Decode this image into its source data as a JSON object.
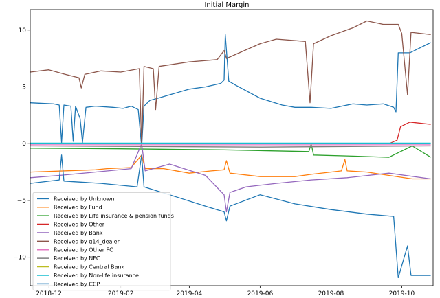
{
  "chart_data": {
    "type": "line",
    "title": "Initial Margin",
    "xlabel": "",
    "ylabel": "",
    "x_ticks": [
      "2018-12",
      "2019-02",
      "2019-04",
      "2019-06",
      "2019-08",
      "2019-10"
    ],
    "y_ticks": [
      10,
      5,
      0,
      -5,
      -10
    ],
    "xlim": [
      "2018-11-15",
      "2019-10-28"
    ],
    "ylim": [
      -12.5,
      11.8
    ],
    "grid": false,
    "legend_position": "lower-left",
    "series": [
      {
        "name": "Received by Unknown",
        "color": "#1f77b4",
        "points": [
          [
            "2018-11-15",
            3.6
          ],
          [
            "2018-12-05",
            3.5
          ],
          [
            "2018-12-10",
            3.4
          ],
          [
            "2018-12-12",
            0.1
          ],
          [
            "2018-12-14",
            3.4
          ],
          [
            "2018-12-20",
            3.3
          ],
          [
            "2018-12-22",
            0.2
          ],
          [
            "2018-12-24",
            3.3
          ],
          [
            "2018-12-28",
            2.2
          ],
          [
            "2018-12-30",
            0.1
          ],
          [
            "2019-01-02",
            3.2
          ],
          [
            "2019-01-10",
            3.3
          ],
          [
            "2019-01-25",
            3.2
          ],
          [
            "2019-02-03",
            3.1
          ],
          [
            "2019-02-10",
            3.3
          ],
          [
            "2019-02-16",
            3.0
          ],
          [
            "2019-02-19",
            -0.3
          ],
          [
            "2019-02-21",
            3.3
          ],
          [
            "2019-02-26",
            3.8
          ],
          [
            "2019-03-05",
            4.0
          ],
          [
            "2019-04-01",
            4.8
          ],
          [
            "2019-04-15",
            5.0
          ],
          [
            "2019-04-28",
            5.3
          ],
          [
            "2019-05-01",
            5.6
          ],
          [
            "2019-05-02",
            9.6
          ],
          [
            "2019-05-05",
            5.5
          ],
          [
            "2019-05-10",
            5.2
          ],
          [
            "2019-06-01",
            4.0
          ],
          [
            "2019-06-20",
            3.4
          ],
          [
            "2019-07-01",
            3.2
          ],
          [
            "2019-07-15",
            3.2
          ],
          [
            "2019-08-01",
            3.1
          ],
          [
            "2019-08-20",
            3.5
          ],
          [
            "2019-09-01",
            3.4
          ],
          [
            "2019-09-15",
            3.5
          ],
          [
            "2019-09-24",
            3.2
          ],
          [
            "2019-09-26",
            2.8
          ],
          [
            "2019-09-28",
            8.0
          ],
          [
            "2019-10-08",
            8.0
          ],
          [
            "2019-10-26",
            8.9
          ]
        ]
      },
      {
        "name": "Received by Fund",
        "color": "#ff7f0e",
        "points": [
          [
            "2018-11-15",
            -2.5
          ],
          [
            "2019-01-10",
            -2.3
          ],
          [
            "2019-01-20",
            -2.2
          ],
          [
            "2019-02-10",
            -2.1
          ],
          [
            "2019-02-19",
            -1.0
          ],
          [
            "2019-02-22",
            -2.2
          ],
          [
            "2019-03-10",
            -2.2
          ],
          [
            "2019-04-01",
            -2.6
          ],
          [
            "2019-04-20",
            -2.4
          ],
          [
            "2019-05-01",
            -2.3
          ],
          [
            "2019-05-03",
            -1.5
          ],
          [
            "2019-05-06",
            -2.6
          ],
          [
            "2019-06-01",
            -2.9
          ],
          [
            "2019-07-01",
            -2.9
          ],
          [
            "2019-07-15",
            -2.7
          ],
          [
            "2019-08-10",
            -2.4
          ],
          [
            "2019-08-13",
            -1.4
          ],
          [
            "2019-08-15",
            -2.4
          ],
          [
            "2019-09-01",
            -2.5
          ],
          [
            "2019-09-20",
            -2.8
          ],
          [
            "2019-10-10",
            -3.1
          ],
          [
            "2019-10-26",
            -3.1
          ]
        ]
      },
      {
        "name": "Received by Life insurance & pension funds",
        "color": "#2ca02c",
        "points": [
          [
            "2018-11-15",
            -0.4
          ],
          [
            "2019-02-01",
            -0.45
          ],
          [
            "2019-05-01",
            -0.55
          ],
          [
            "2019-07-13",
            -0.7
          ],
          [
            "2019-07-15",
            0.0
          ],
          [
            "2019-07-17",
            -1.0
          ],
          [
            "2019-08-20",
            -1.1
          ],
          [
            "2019-09-20",
            -1.2
          ],
          [
            "2019-10-10",
            -0.2
          ],
          [
            "2019-10-26",
            -1.2
          ]
        ]
      },
      {
        "name": "Received by Other",
        "color": "#d62728",
        "points": [
          [
            "2018-11-15",
            0.0
          ],
          [
            "2019-09-20",
            0.0
          ],
          [
            "2019-09-27",
            0.3
          ],
          [
            "2019-09-30",
            1.5
          ],
          [
            "2019-10-08",
            1.9
          ],
          [
            "2019-10-26",
            1.7
          ]
        ]
      },
      {
        "name": "Received by Bank",
        "color": "#9467bd",
        "points": [
          [
            "2018-11-15",
            -3.0
          ],
          [
            "2018-12-10",
            -2.8
          ],
          [
            "2019-01-10",
            -2.5
          ],
          [
            "2019-02-10",
            -2.2
          ],
          [
            "2019-02-19",
            0.0
          ],
          [
            "2019-02-22",
            -2.4
          ],
          [
            "2019-03-15",
            -1.8
          ],
          [
            "2019-04-15",
            -2.8
          ],
          [
            "2019-05-01",
            -4.5
          ],
          [
            "2019-05-03",
            -6.0
          ],
          [
            "2019-05-06",
            -4.3
          ],
          [
            "2019-05-20",
            -3.8
          ],
          [
            "2019-06-15",
            -3.5
          ],
          [
            "2019-07-15",
            -3.2
          ],
          [
            "2019-08-15",
            -3.0
          ],
          [
            "2019-09-20",
            -2.6
          ],
          [
            "2019-10-26",
            -3.1
          ]
        ]
      },
      {
        "name": "Received by g14_dealer",
        "color": "#8c564b",
        "points": [
          [
            "2018-11-15",
            6.3
          ],
          [
            "2018-12-01",
            6.5
          ],
          [
            "2018-12-15",
            6.1
          ],
          [
            "2018-12-27",
            5.8
          ],
          [
            "2018-12-29",
            4.9
          ],
          [
            "2019-01-01",
            6.1
          ],
          [
            "2019-01-15",
            6.4
          ],
          [
            "2019-02-01",
            6.3
          ],
          [
            "2019-02-17",
            6.6
          ],
          [
            "2019-02-19",
            -0.3
          ],
          [
            "2019-02-21",
            6.8
          ],
          [
            "2019-03-01",
            6.6
          ],
          [
            "2019-03-03",
            3.0
          ],
          [
            "2019-03-06",
            6.8
          ],
          [
            "2019-04-01",
            7.2
          ],
          [
            "2019-04-25",
            7.4
          ],
          [
            "2019-05-01",
            8.2
          ],
          [
            "2019-05-03",
            7.5
          ],
          [
            "2019-06-01",
            8.8
          ],
          [
            "2019-06-15",
            9.2
          ],
          [
            "2019-07-10",
            9.0
          ],
          [
            "2019-07-14",
            3.6
          ],
          [
            "2019-07-17",
            8.8
          ],
          [
            "2019-08-01",
            9.5
          ],
          [
            "2019-08-20",
            10.2
          ],
          [
            "2019-09-01",
            10.8
          ],
          [
            "2019-09-15",
            10.5
          ],
          [
            "2019-09-28",
            10.5
          ],
          [
            "2019-10-01",
            9.7
          ],
          [
            "2019-10-06",
            4.3
          ],
          [
            "2019-10-09",
            9.8
          ],
          [
            "2019-10-26",
            9.6
          ]
        ]
      },
      {
        "name": "Received by Other FC",
        "color": "#e377c2",
        "points": [
          [
            "2018-11-15",
            -0.1
          ],
          [
            "2019-10-26",
            -0.1
          ]
        ]
      },
      {
        "name": "Received by NFC",
        "color": "#7f7f7f",
        "points": [
          [
            "2018-11-15",
            -0.2
          ],
          [
            "2019-06-01",
            -0.3
          ],
          [
            "2019-10-26",
            -0.2
          ]
        ]
      },
      {
        "name": "Received by Central Bank",
        "color": "#bcbd22",
        "points": [
          [
            "2018-11-15",
            0.02
          ],
          [
            "2019-10-26",
            0.02
          ]
        ]
      },
      {
        "name": "Received by Non-life insurance",
        "color": "#17becf",
        "points": [
          [
            "2018-11-15",
            0.05
          ],
          [
            "2019-10-26",
            0.05
          ]
        ]
      },
      {
        "name": "Received by CCP",
        "color": "#1f77b4",
        "points": [
          [
            "2018-11-15",
            -3.5
          ],
          [
            "2018-12-10",
            -3.2
          ],
          [
            "2018-12-12",
            -1.0
          ],
          [
            "2018-12-14",
            -3.3
          ],
          [
            "2019-01-15",
            -3.5
          ],
          [
            "2019-02-15",
            -3.8
          ],
          [
            "2019-02-19",
            -1.0
          ],
          [
            "2019-02-21",
            -3.8
          ],
          [
            "2019-03-15",
            -4.5
          ],
          [
            "2019-04-15",
            -5.5
          ],
          [
            "2019-05-01",
            -6.0
          ],
          [
            "2019-05-03",
            -6.8
          ],
          [
            "2019-05-06",
            -5.5
          ],
          [
            "2019-06-01",
            -4.5
          ],
          [
            "2019-07-01",
            -5.3
          ],
          [
            "2019-08-01",
            -5.8
          ],
          [
            "2019-09-01",
            -6.2
          ],
          [
            "2019-09-24",
            -6.4
          ],
          [
            "2019-09-28",
            -11.8
          ],
          [
            "2019-10-06",
            -9.0
          ],
          [
            "2019-10-09",
            -11.6
          ],
          [
            "2019-10-26",
            -11.6
          ]
        ]
      }
    ]
  }
}
